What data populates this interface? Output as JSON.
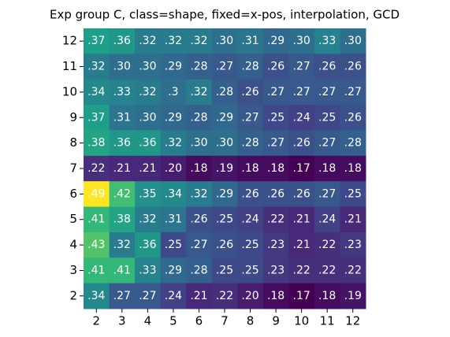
{
  "chart_data": {
    "type": "heatmap",
    "title": "Exp group C, class=shape, fixed=x-pos, interpolation, GCD",
    "colormap": "viridis",
    "x": [
      2,
      3,
      4,
      5,
      6,
      7,
      8,
      9,
      10,
      11,
      12
    ],
    "y": [
      12,
      11,
      10,
      9,
      8,
      7,
      6,
      5,
      4,
      3,
      2
    ],
    "values": [
      [
        0.37,
        0.36,
        0.32,
        0.32,
        0.32,
        0.3,
        0.31,
        0.29,
        0.3,
        0.33,
        0.3
      ],
      [
        0.32,
        0.3,
        0.3,
        0.29,
        0.28,
        0.27,
        0.28,
        0.26,
        0.27,
        0.26,
        0.26
      ],
      [
        0.34,
        0.33,
        0.32,
        0.3,
        0.32,
        0.28,
        0.26,
        0.27,
        0.27,
        0.27,
        0.27
      ],
      [
        0.37,
        0.31,
        0.3,
        0.29,
        0.28,
        0.29,
        0.27,
        0.25,
        0.24,
        0.25,
        0.26
      ],
      [
        0.38,
        0.36,
        0.36,
        0.32,
        0.3,
        0.3,
        0.28,
        0.27,
        0.26,
        0.27,
        0.28
      ],
      [
        0.22,
        0.21,
        0.21,
        0.2,
        0.18,
        0.19,
        0.18,
        0.18,
        0.17,
        0.18,
        0.18
      ],
      [
        0.49,
        0.42,
        0.35,
        0.34,
        0.32,
        0.29,
        0.26,
        0.26,
        0.26,
        0.27,
        0.25
      ],
      [
        0.41,
        0.38,
        0.32,
        0.31,
        0.26,
        0.25,
        0.24,
        0.22,
        0.21,
        0.24,
        0.21
      ],
      [
        0.43,
        0.32,
        0.36,
        0.25,
        0.27,
        0.26,
        0.25,
        0.23,
        0.21,
        0.22,
        0.23
      ],
      [
        0.41,
        0.41,
        0.33,
        0.29,
        0.28,
        0.25,
        0.25,
        0.23,
        0.22,
        0.22,
        0.22
      ],
      [
        0.34,
        0.27,
        0.27,
        0.24,
        0.21,
        0.22,
        0.2,
        0.18,
        0.17,
        0.18,
        0.19
      ]
    ],
    "value_labels": [
      [
        ".37",
        ".36",
        ".32",
        ".32",
        ".32",
        ".30",
        ".31",
        ".29",
        ".30",
        ".33",
        ".30"
      ],
      [
        ".32",
        ".30",
        ".30",
        ".29",
        ".28",
        ".27",
        ".28",
        ".26",
        ".27",
        ".26",
        ".26"
      ],
      [
        ".34",
        ".33",
        ".32",
        ".3",
        ".32",
        ".28",
        ".26",
        ".27",
        ".27",
        ".27",
        ".27"
      ],
      [
        ".37",
        ".31",
        ".30",
        ".29",
        ".28",
        ".29",
        ".27",
        ".25",
        ".24",
        ".25",
        ".26"
      ],
      [
        ".38",
        ".36",
        ".36",
        ".32",
        ".30",
        ".30",
        ".28",
        ".27",
        ".26",
        ".27",
        ".28"
      ],
      [
        ".22",
        ".21",
        ".21",
        ".20",
        ".18",
        ".19",
        ".18",
        ".18",
        ".17",
        ".18",
        ".18"
      ],
      [
        ".49",
        ".42",
        ".35",
        ".34",
        ".32",
        ".29",
        ".26",
        ".26",
        ".26",
        ".27",
        ".25"
      ],
      [
        ".41",
        ".38",
        ".32",
        ".31",
        ".26",
        ".25",
        ".24",
        ".22",
        ".21",
        ".24",
        ".21"
      ],
      [
        ".43",
        ".32",
        ".36",
        ".25",
        ".27",
        ".26",
        ".25",
        ".23",
        ".21",
        ".22",
        ".23"
      ],
      [
        ".41",
        ".41",
        ".33",
        ".29",
        ".28",
        ".25",
        ".25",
        ".23",
        ".22",
        ".22",
        ".22"
      ],
      [
        ".34",
        ".27",
        ".27",
        ".24",
        ".21",
        ".22",
        ".20",
        ".18",
        ".17",
        ".18",
        ".19"
      ]
    ]
  }
}
